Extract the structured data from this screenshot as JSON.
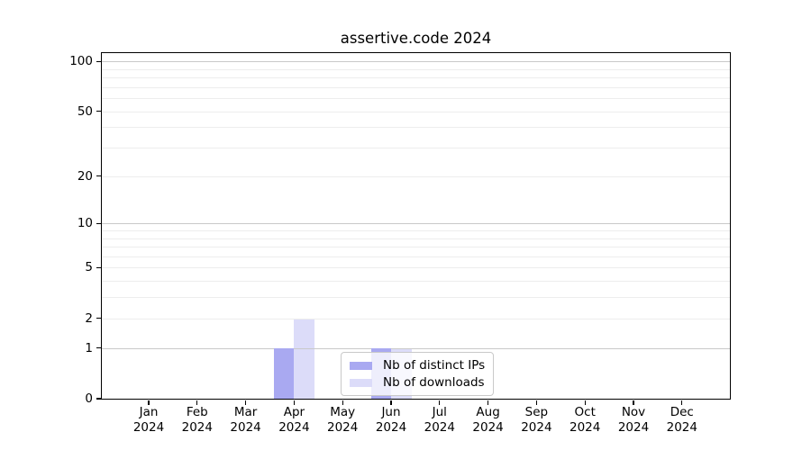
{
  "title": "assertive.code 2024",
  "colors": {
    "bar_distinct_ips": "#a9a9f1",
    "bar_downloads": "#dcdcf9",
    "grid_decade": "#c9c9c9",
    "grid_minor": "#ededed",
    "spine": "#000000"
  },
  "chart_data": {
    "type": "bar",
    "title": "assertive.code 2024",
    "categories": [
      "Jan",
      "Feb",
      "Mar",
      "Apr",
      "May",
      "Jun",
      "Jul",
      "Aug",
      "Sep",
      "Oct",
      "Nov",
      "Dec"
    ],
    "category_year": "2024",
    "series": [
      {
        "name": "Nb of distinct IPs",
        "color": "#a9a9f1",
        "values": [
          0,
          0,
          0,
          1,
          0,
          1,
          0,
          0,
          0,
          0,
          0,
          0
        ]
      },
      {
        "name": "Nb of downloads",
        "color": "#dcdcf9",
        "values": [
          0,
          0,
          0,
          2,
          0,
          1,
          0,
          0,
          0,
          0,
          0,
          0
        ]
      }
    ],
    "y_axis": {
      "scale": "log1p",
      "ticks": [
        0,
        1,
        2,
        5,
        10,
        20,
        50,
        100
      ],
      "minor_ticks": [
        3,
        4,
        6,
        7,
        8,
        9,
        30,
        40,
        60,
        70,
        80,
        90
      ],
      "ylim": [
        0,
        112
      ],
      "grid": true
    },
    "legend": {
      "items": [
        "Nb of distinct IPs",
        "Nb of downloads"
      ],
      "position": "lower-center"
    }
  }
}
